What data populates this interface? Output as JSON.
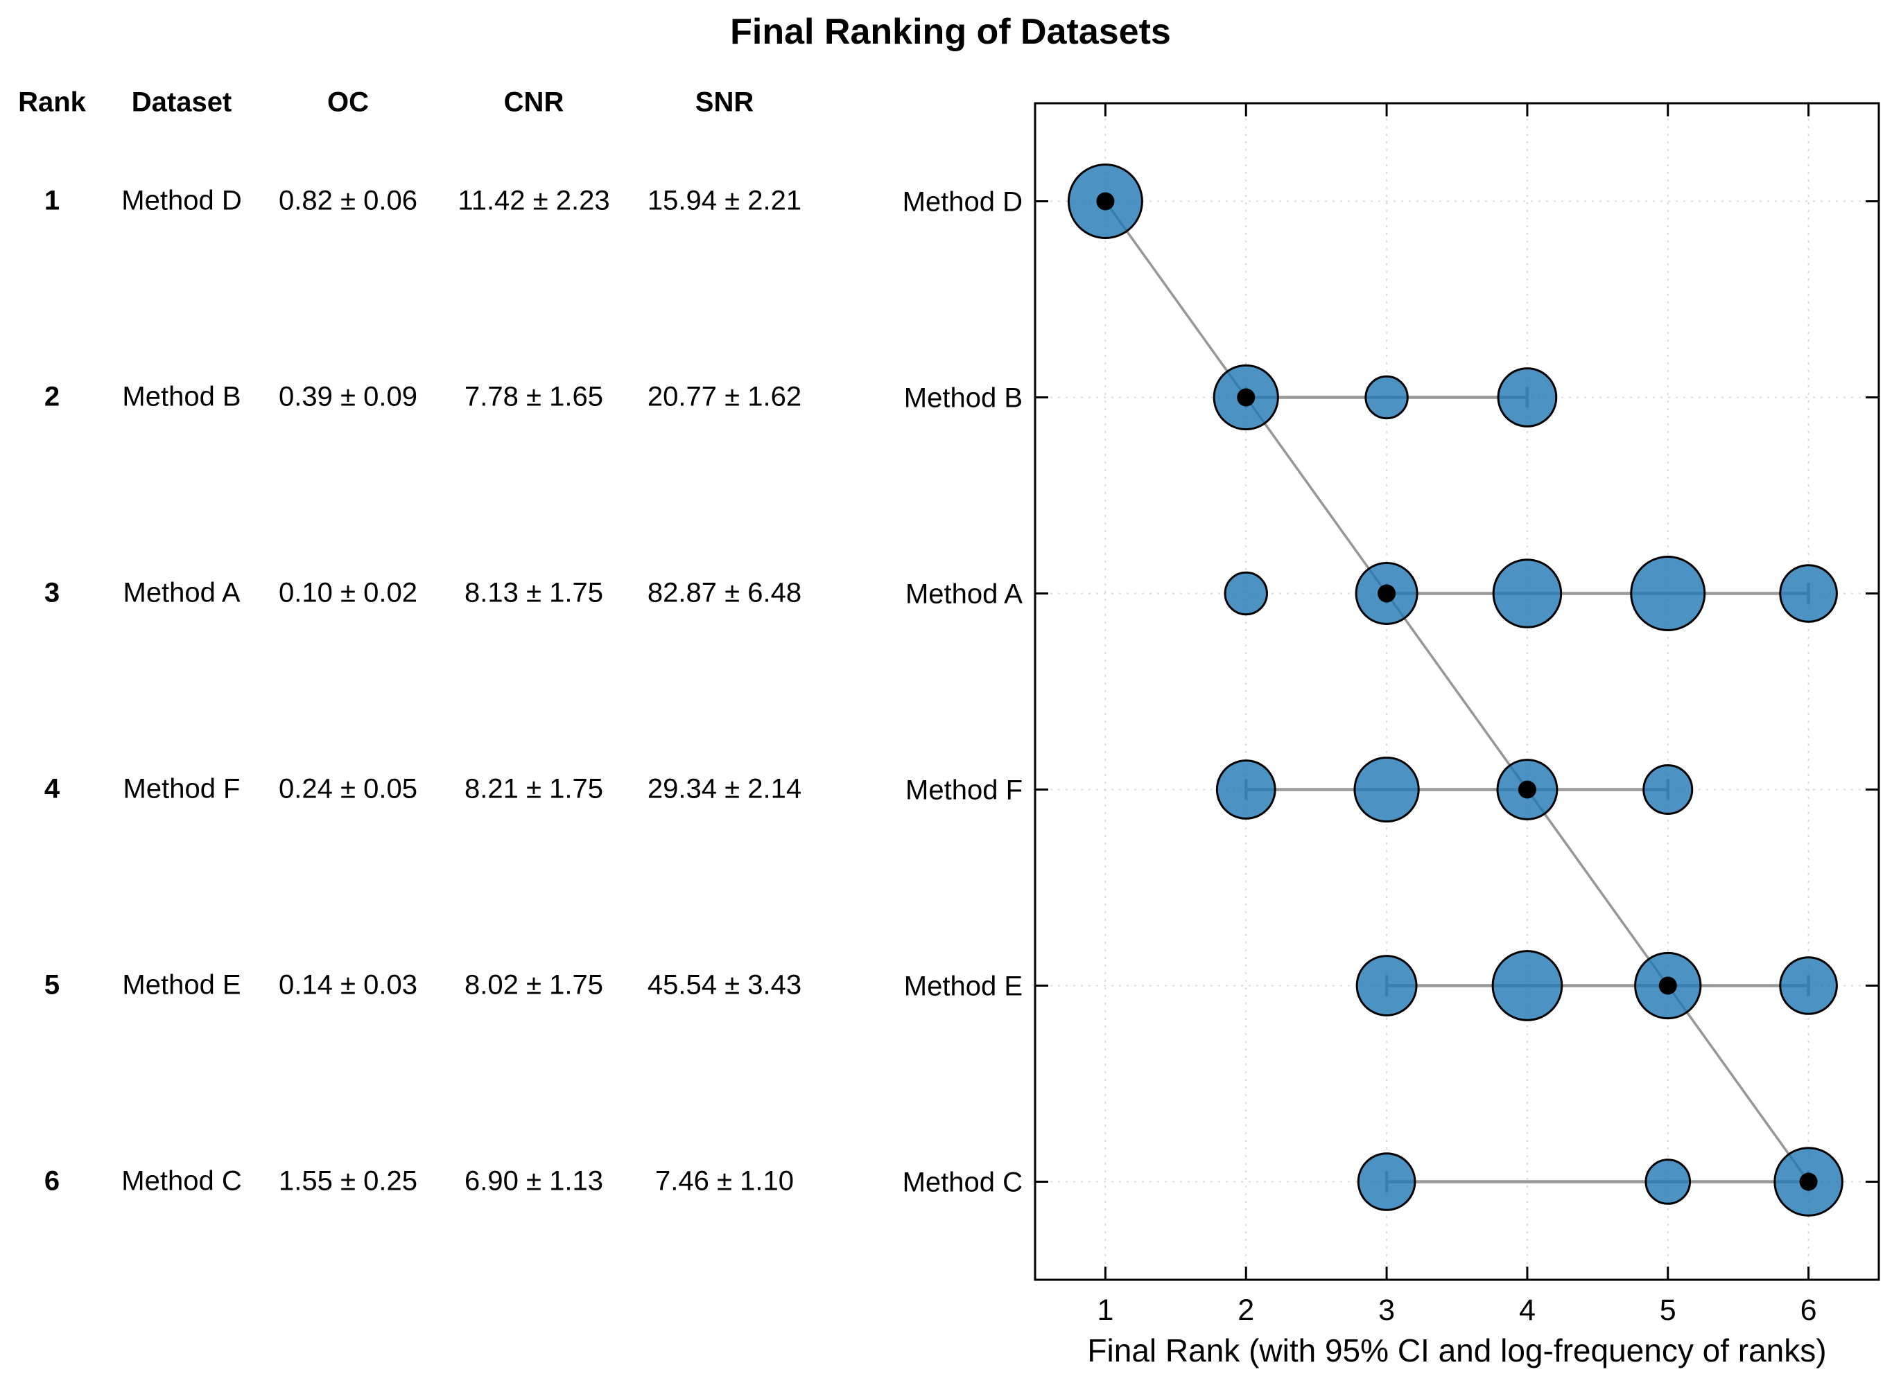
{
  "title": "Final Ranking of Datasets",
  "table": {
    "headers": [
      "Rank",
      "Dataset",
      "OC",
      "CNR",
      "SNR"
    ],
    "rows": [
      {
        "rank": "1",
        "dataset": "Method D",
        "oc": "0.82 ± 0.06",
        "cnr": "11.42 ± 2.23",
        "snr": "15.94 ± 2.21"
      },
      {
        "rank": "2",
        "dataset": "Method B",
        "oc": "0.39 ± 0.09",
        "cnr": "7.78 ± 1.65",
        "snr": "20.77 ± 1.62"
      },
      {
        "rank": "3",
        "dataset": "Method A",
        "oc": "0.10 ± 0.02",
        "cnr": "8.13 ± 1.75",
        "snr": "82.87 ± 6.48"
      },
      {
        "rank": "4",
        "dataset": "Method F",
        "oc": "0.24 ± 0.05",
        "cnr": "8.21 ± 1.75",
        "snr": "29.34 ± 2.14"
      },
      {
        "rank": "5",
        "dataset": "Method E",
        "oc": "0.14 ± 0.03",
        "cnr": "8.02 ± 1.75",
        "snr": "45.54 ± 3.43"
      },
      {
        "rank": "6",
        "dataset": "Method C",
        "oc": "1.55 ± 0.25",
        "cnr": "6.90 ± 1.13",
        "snr": "7.46 ± 1.10"
      }
    ]
  },
  "chart_data": {
    "type": "scatter",
    "title": "Final Ranking of Datasets",
    "xlabel": "Final Rank (with 95% CI and log-frequency of ranks)",
    "ylabel": "",
    "x_ticks": [
      "1",
      "2",
      "3",
      "4",
      "5",
      "6"
    ],
    "xlim": [
      0.5,
      6.5
    ],
    "grid": true,
    "legend": "none",
    "note": "bubble area encodes log-frequency of observed ranks; black dot = final rank; gray bar = 95% CI",
    "methods": [
      {
        "label": "Method D",
        "final_rank": 1,
        "ci": [
          1,
          1
        ],
        "bubbles": [
          {
            "rank": 1,
            "size": 1.0
          }
        ]
      },
      {
        "label": "Method B",
        "final_rank": 2,
        "ci": [
          2,
          4
        ],
        "bubbles": [
          {
            "rank": 2,
            "size": 0.87
          },
          {
            "rank": 3,
            "size": 0.57
          },
          {
            "rank": 4,
            "size": 0.79
          }
        ]
      },
      {
        "label": "Method A",
        "final_rank": 3,
        "ci": [
          3,
          6
        ],
        "bubbles": [
          {
            "rank": 2,
            "size": 0.57
          },
          {
            "rank": 3,
            "size": 0.83
          },
          {
            "rank": 4,
            "size": 0.92
          },
          {
            "rank": 5,
            "size": 1.0
          },
          {
            "rank": 6,
            "size": 0.77
          }
        ]
      },
      {
        "label": "Method F",
        "final_rank": 4,
        "ci": [
          2,
          5
        ],
        "bubbles": [
          {
            "rank": 2,
            "size": 0.79
          },
          {
            "rank": 3,
            "size": 0.87
          },
          {
            "rank": 4,
            "size": 0.81
          },
          {
            "rank": 5,
            "size": 0.66
          }
        ]
      },
      {
        "label": "Method E",
        "final_rank": 5,
        "ci": [
          3,
          6
        ],
        "bubbles": [
          {
            "rank": 3,
            "size": 0.81
          },
          {
            "rank": 4,
            "size": 0.94
          },
          {
            "rank": 5,
            "size": 0.89
          },
          {
            "rank": 6,
            "size": 0.77
          }
        ]
      },
      {
        "label": "Method C",
        "final_rank": 6,
        "ci": [
          3,
          6
        ],
        "bubbles": [
          {
            "rank": 3,
            "size": 0.77
          },
          {
            "rank": 5,
            "size": 0.6
          },
          {
            "rank": 6,
            "size": 0.92
          }
        ]
      }
    ],
    "colors": {
      "bubble_fill": "#1f77b4",
      "bubble_edge": "#000000",
      "ci_line": "#999999",
      "trend_line": "#8c8c8c",
      "grid": "#d9d9d9",
      "text": "#000000"
    }
  }
}
